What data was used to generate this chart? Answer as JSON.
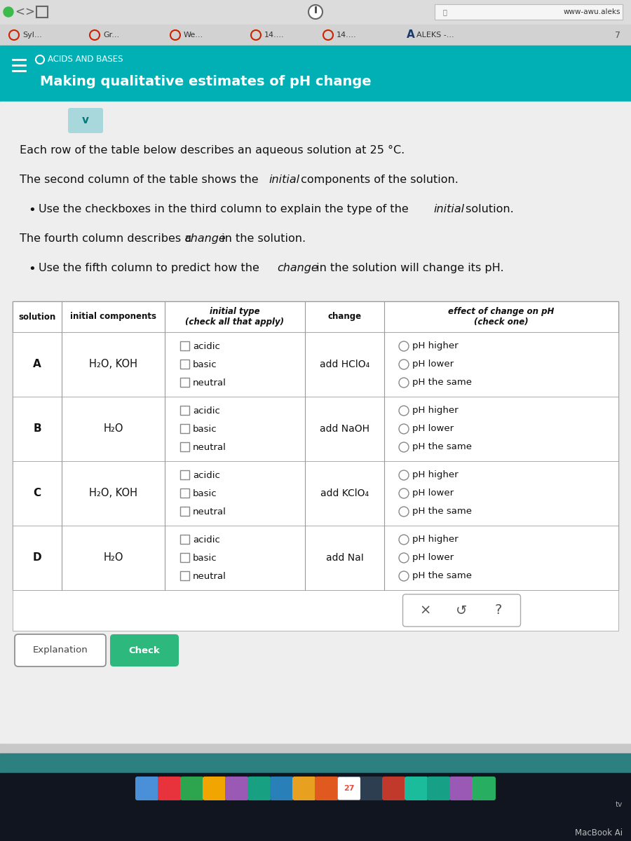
{
  "bg_color": "#c8c8c8",
  "toolbar_bg": "#dcdcdc",
  "tab_bar_bg": "#d2d2d2",
  "teal_header_bg": "#00b0b5",
  "content_bg": "#eeeeee",
  "white": "#ffffff",
  "border_color": "#999999",
  "text_dark": "#111111",
  "text_gray": "#555555",
  "teal_dark": "#007a7d",
  "teal_btn": "#b8e0e2",
  "red_tab": "#cc2200",
  "blue_aleks": "#1a3a6b",
  "browser_url": "www-awu.aleks",
  "tab_labels": [
    "Syl...",
    "Gr...",
    "We...",
    "14....",
    "14....",
    "ALEKS -..."
  ],
  "acids_bases_label": "ACIDS AND BASES",
  "main_title": "Making qualitative estimates of pH change",
  "para1": "Each row of the table below describes an aqueous solution at 25 °C.",
  "para2a": "The second column of the table shows the ",
  "para2b": "initial",
  "para2c": " components of the solution.",
  "bullet1a": "Use the checkboxes in the third column to explain the type of the ",
  "bullet1b": "initial",
  "bullet1c": " solution.",
  "para3a": "The fourth column describes a ",
  "para3b": "change",
  "para3c": " in the solution.",
  "bullet2a": "Use the fifth column to predict how the ",
  "bullet2b": "change",
  "bullet2c": " in the solution will change its pH.",
  "col_headers": [
    "solution",
    "initial components",
    "initial type\n(check all that apply)",
    "change",
    "effect of change on pH\n(check one)"
  ],
  "rows": [
    {
      "sol": "A",
      "components": "H₂O, KOH",
      "change": "add HClO₄"
    },
    {
      "sol": "B",
      "components": "H₂O",
      "change": "add NaOH"
    },
    {
      "sol": "C",
      "components": "H₂O, KOH",
      "change": "add KClO₄"
    },
    {
      "sol": "D",
      "components": "H₂O",
      "change": "add NaI"
    }
  ],
  "types": [
    "acidic",
    "basic",
    "neutral"
  ],
  "effects": [
    "pH higher",
    "pH lower",
    "pH the same"
  ],
  "explanation_btn": "Explanation",
  "check_btn": "Check",
  "check_btn_color": "#2db87e",
  "bottom_bar_color": "#2d8080",
  "dock_bg": "#111520",
  "x_symbol": "×",
  "undo_symbol": "↺",
  "question_symbol": "?",
  "macbook_text": "MacBook Ai",
  "calendar_num": "27"
}
